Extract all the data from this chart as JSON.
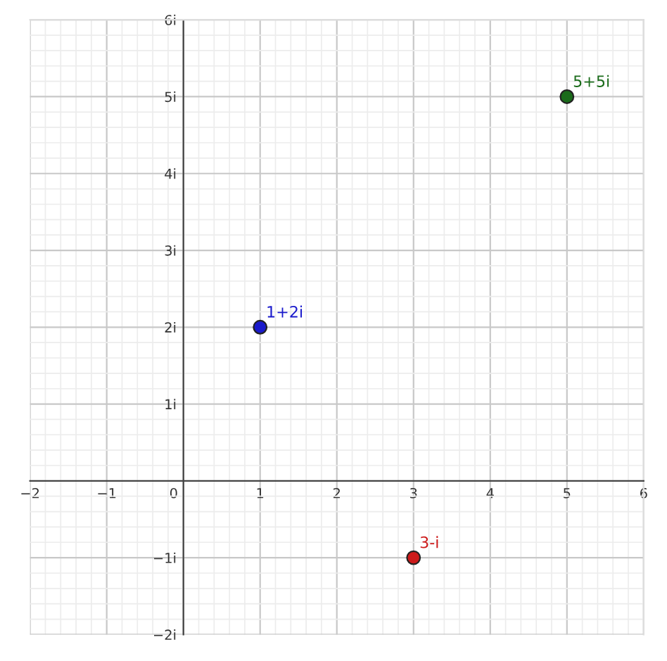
{
  "chart_data": {
    "type": "scatter",
    "x": [
      1,
      3,
      5
    ],
    "values": [
      2,
      -1,
      5
    ],
    "colors": [
      "#1a1acc",
      "#cc1a1a",
      "#1a6b1a"
    ],
    "marker": "circle",
    "annotations": [
      {
        "text": "1+2i",
        "x": 1,
        "y": 2
      },
      {
        "text": "3-i",
        "x": 3,
        "y": -1
      },
      {
        "text": "5+5i",
        "x": 5,
        "y": 5
      }
    ],
    "xlim": [
      -2,
      6
    ],
    "ylim": [
      -2,
      6
    ],
    "xticks": [
      {
        "value": -2,
        "label": "−2"
      },
      {
        "value": -1,
        "label": "−1"
      },
      0,
      1,
      2,
      3,
      4,
      5,
      6
    ],
    "yticks": [
      {
        "value": -2,
        "label": "−2i"
      },
      {
        "value": -1,
        "label": "−1i"
      },
      {
        "value": 1,
        "label": "1i"
      },
      {
        "value": 2,
        "label": "2i"
      },
      {
        "value": 3,
        "label": "3i"
      },
      {
        "value": 4,
        "label": "4i"
      },
      {
        "value": 5,
        "label": "5i"
      },
      {
        "value": 6,
        "label": "6i"
      }
    ],
    "grid": true
  }
}
